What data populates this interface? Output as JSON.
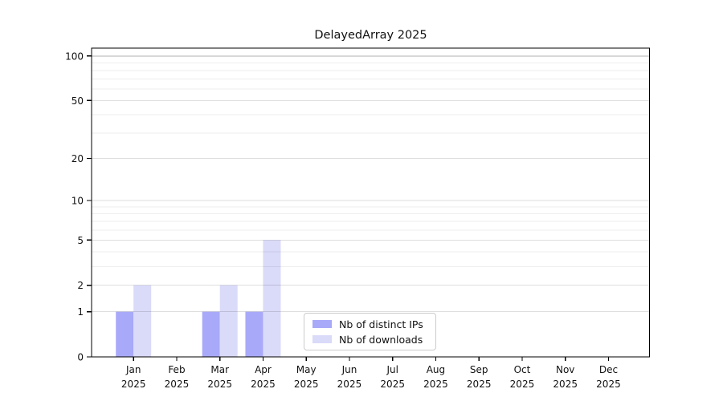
{
  "chart_data": {
    "type": "bar",
    "title": "DelayedArray 2025",
    "year_label": "2025",
    "months": [
      "Jan",
      "Feb",
      "Mar",
      "Apr",
      "May",
      "Jun",
      "Jul",
      "Aug",
      "Sep",
      "Oct",
      "Nov",
      "Dec"
    ],
    "categories": [
      "Jan 2025",
      "Feb 2025",
      "Mar 2025",
      "Apr 2025",
      "May 2025",
      "Jun 2025",
      "Jul 2025",
      "Aug 2025",
      "Sep 2025",
      "Oct 2025",
      "Nov 2025",
      "Dec 2025"
    ],
    "series": [
      {
        "name": "Nb of distinct IPs",
        "color": "#a9a9f9",
        "values": [
          1,
          0,
          1,
          1,
          0,
          0,
          0,
          0,
          0,
          0,
          0,
          0
        ]
      },
      {
        "name": "Nb of downloads",
        "color": "#dadaf9",
        "values": [
          2,
          0,
          2,
          5,
          0,
          0,
          0,
          0,
          0,
          0,
          0,
          0
        ]
      }
    ],
    "yticks": [
      0,
      1,
      2,
      5,
      10,
      20,
      50,
      100
    ],
    "grid_minor": [
      3,
      4,
      6,
      7,
      8,
      9,
      30,
      40,
      60,
      70,
      80,
      90
    ],
    "grid_major": [
      1,
      2,
      5,
      10,
      20,
      50
    ],
    "grid_strong": [
      100
    ],
    "scale": "log1p",
    "ylim": [
      0,
      113
    ],
    "xlabel": "",
    "ylabel": "",
    "grid": true,
    "legend_position": "lower center",
    "legend": {
      "items": [
        "Nb of distinct IPs",
        "Nb of downloads"
      ]
    }
  }
}
